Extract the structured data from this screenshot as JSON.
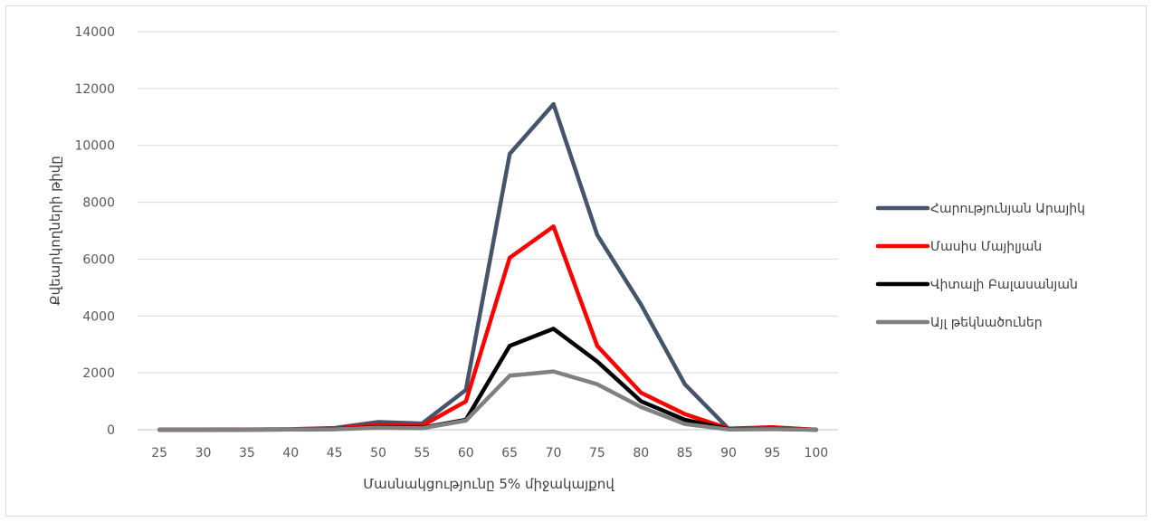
{
  "chart_data": {
    "type": "line",
    "title": "",
    "xlabel": "Մասնակցությունը 5% միջակայքով",
    "ylabel": "Քվեարկողների թիվը",
    "ylim": [
      0,
      14000
    ],
    "yticks": [
      0,
      2000,
      4000,
      6000,
      8000,
      10000,
      12000,
      14000
    ],
    "grid": true,
    "legend_position": "right",
    "categories": [
      "25",
      "30",
      "35",
      "40",
      "45",
      "50",
      "55",
      "60",
      "65",
      "70",
      "75",
      "80",
      "85",
      "90",
      "95",
      "100"
    ],
    "series": [
      {
        "name": "Հարությունյան Արայիկ",
        "color": "#44546a",
        "values": [
          0,
          0,
          10,
          20,
          60,
          270,
          220,
          1400,
          9700,
          11450,
          6850,
          4400,
          1600,
          30,
          80,
          0
        ]
      },
      {
        "name": "Մասիս Մայիլյան",
        "color": "#ff0000",
        "values": [
          0,
          0,
          5,
          10,
          40,
          170,
          140,
          1000,
          6050,
          7150,
          2950,
          1300,
          550,
          40,
          90,
          0
        ]
      },
      {
        "name": "Վիտալի Բալասանյան",
        "color": "#000000",
        "values": [
          0,
          0,
          0,
          5,
          20,
          90,
          70,
          350,
          2950,
          3550,
          2400,
          1000,
          350,
          20,
          30,
          0
        ]
      },
      {
        "name": "Այլ թեկնածուներ",
        "color": "#808080",
        "values": [
          0,
          0,
          0,
          5,
          15,
          70,
          50,
          320,
          1900,
          2050,
          1600,
          800,
          200,
          10,
          20,
          0
        ]
      }
    ]
  }
}
